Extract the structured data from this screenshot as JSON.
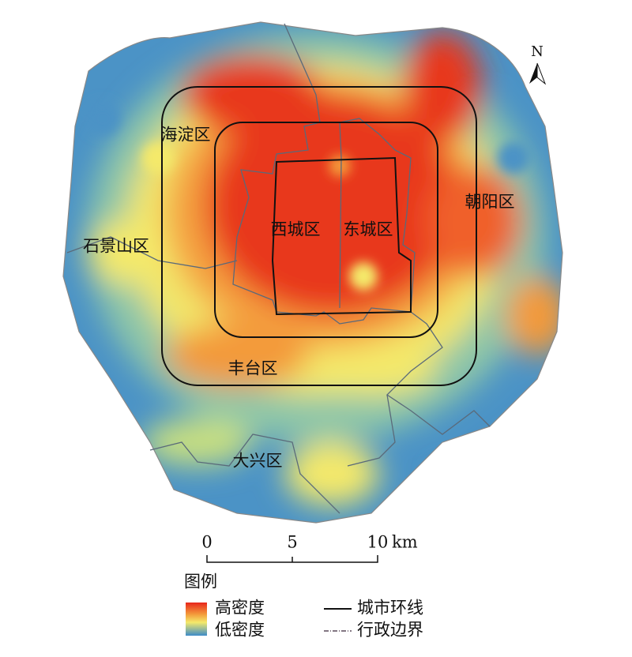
{
  "map": {
    "north": "N",
    "districts": [
      "海淀区",
      "朝阳区",
      "石景山区",
      "西城区",
      "东城区",
      "丰台区",
      "大兴区"
    ],
    "scale_bar": {
      "ticks": [
        0,
        5,
        10
      ],
      "unit": "km"
    },
    "legend": {
      "title": "图例",
      "density_high": "高密度",
      "density_low": "低密度",
      "ring_road": "城市环线",
      "boundary": "行政边界"
    }
  }
}
